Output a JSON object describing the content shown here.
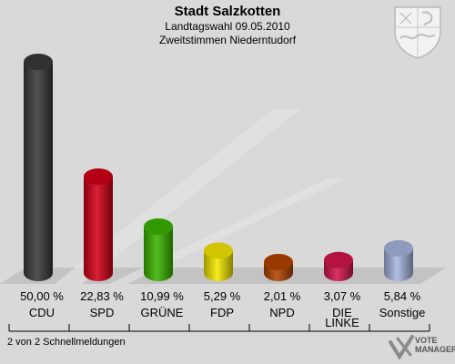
{
  "header": {
    "title": "Stadt Salzkotten",
    "subtitle1": "Landtagswahl 09.05.2010",
    "subtitle2": "Zweitstimmen Niederntudorf"
  },
  "chart_data": {
    "type": "bar",
    "categories": [
      "CDU",
      "SPD",
      "GRÜNE",
      "FDP",
      "NPD",
      "DIE LINKE",
      "Sonstige"
    ],
    "value_labels": [
      "50,00 %",
      "22,83 %",
      "10,99 %",
      "5,29 %",
      "2,01 %",
      "3,07 %",
      "5,84 %"
    ],
    "values": [
      50.0,
      22.83,
      10.99,
      5.29,
      2.01,
      3.07,
      5.84
    ],
    "colors": [
      "#3a3a3a",
      "#d40017",
      "#3cb400",
      "#f5e800",
      "#b34400",
      "#d4164e",
      "#a8b6e0"
    ],
    "title": "Stadt Salzkotten",
    "xlabel": "",
    "ylabel": "",
    "ylim": [
      0,
      50
    ],
    "grid": false
  },
  "footer": {
    "status": "2 von 2 Schnellmeldungen",
    "brand_line1": "VOTE",
    "brand_line2": "MANAGER"
  }
}
